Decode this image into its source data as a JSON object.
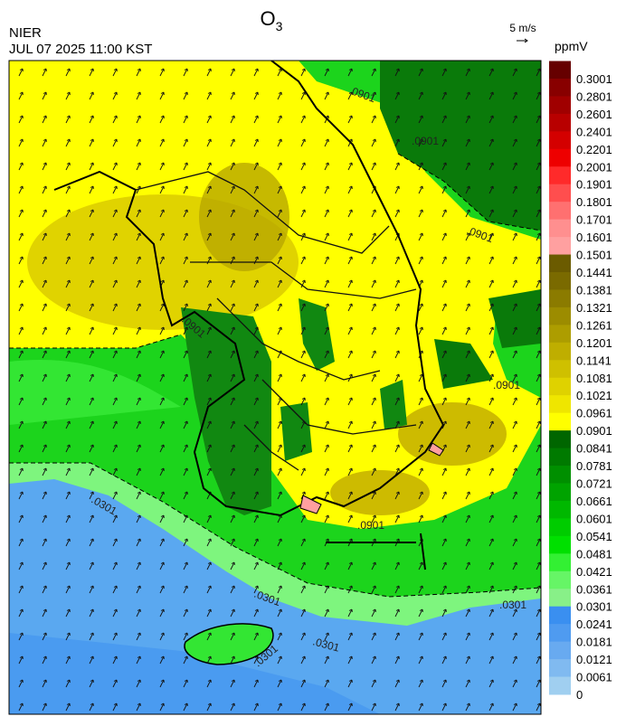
{
  "header": {
    "title": "O",
    "title_subscript": "3",
    "agency": "NIER",
    "timestamp": "JUL 07 2025 11:00 KST",
    "wind_scale": "5 m/s",
    "unit": "ppmV"
  },
  "colorbar": {
    "levels": [
      {
        "value": 0.3001,
        "color": "#660000"
      },
      {
        "value": 0.2801,
        "color": "#880000"
      },
      {
        "value": 0.2601,
        "color": "#a00000"
      },
      {
        "value": 0.2401,
        "color": "#b80000"
      },
      {
        "value": 0.2201,
        "color": "#d40000"
      },
      {
        "value": 0.2001,
        "color": "#ee0000"
      },
      {
        "value": 0.1901,
        "color": "#ff2a2a"
      },
      {
        "value": 0.1801,
        "color": "#ff4e4e"
      },
      {
        "value": 0.1701,
        "color": "#ff7070"
      },
      {
        "value": 0.1601,
        "color": "#ff8f8f"
      },
      {
        "value": 0.1501,
        "color": "#ffa0a0"
      },
      {
        "value": 0.1441,
        "color": "#6b5b00"
      },
      {
        "value": 0.1381,
        "color": "#7a6a00"
      },
      {
        "value": 0.1321,
        "color": "#8b7b00"
      },
      {
        "value": 0.1261,
        "color": "#9c8c00"
      },
      {
        "value": 0.1201,
        "color": "#ad9d00"
      },
      {
        "value": 0.1141,
        "color": "#bfae00"
      },
      {
        "value": 0.1081,
        "color": "#cfc000"
      },
      {
        "value": 0.1021,
        "color": "#dfd200"
      },
      {
        "value": 0.0961,
        "color": "#efe600"
      },
      {
        "value": 0.0901,
        "color": "#ffff00"
      },
      {
        "value": 0.0841,
        "color": "#006600"
      },
      {
        "value": 0.0781,
        "color": "#007a00"
      },
      {
        "value": 0.0721,
        "color": "#008f00"
      },
      {
        "value": 0.0661,
        "color": "#00a300"
      },
      {
        "value": 0.0601,
        "color": "#00b800"
      },
      {
        "value": 0.0541,
        "color": "#00cc00"
      },
      {
        "value": 0.0481,
        "color": "#00e000"
      },
      {
        "value": 0.0421,
        "color": "#33f033"
      },
      {
        "value": 0.0361,
        "color": "#66f566"
      },
      {
        "value": 0.0301,
        "color": "#88f088"
      },
      {
        "value": 0.0241,
        "color": "#3a8ff0"
      },
      {
        "value": 0.0181,
        "color": "#4f9bf0"
      },
      {
        "value": 0.0121,
        "color": "#68aaf0"
      },
      {
        "value": 0.0061,
        "color": "#80baf0"
      },
      {
        "value": 0,
        "color": "#a0cff0"
      }
    ]
  },
  "map": {
    "contour_labels": [
      ".0901",
      ".0901",
      ".0901",
      ".0901",
      ".0901",
      ".0901",
      ".0301",
      ".0301",
      ".0301",
      ".0301",
      ".0301"
    ]
  }
}
